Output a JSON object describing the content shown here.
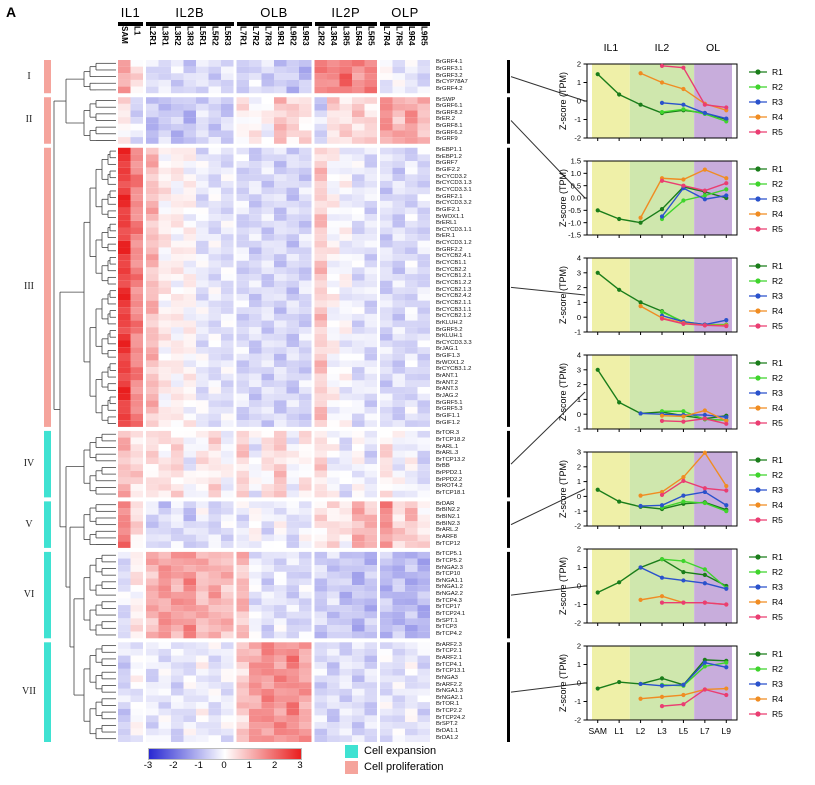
{
  "panel_label": "A",
  "header": {
    "groups": [
      {
        "label": "IL1",
        "columns": [
          "SAM",
          "L1"
        ]
      },
      {
        "label": "IL2B",
        "columns": [
          "L2R1",
          "L3R1",
          "L3R2",
          "L3R3",
          "L5R1",
          "L5R2",
          "L5R3"
        ]
      },
      {
        "label": "OLB",
        "columns": [
          "L7R1",
          "L7R2",
          "L7R3",
          "L9R1",
          "L9R2",
          "L9R3"
        ]
      },
      {
        "label": "IL2P",
        "columns": [
          "L2R2",
          "L3R4",
          "L3R5",
          "L5R4",
          "L5R5"
        ]
      },
      {
        "label": "OLP",
        "columns": [
          "L7R4",
          "L7R5",
          "L9R4",
          "L9R5"
        ]
      }
    ]
  },
  "colorbar": {
    "min": -3,
    "max": 3,
    "ticks": [
      "-3",
      "-2",
      "-1",
      "0",
      "1",
      "2",
      "3"
    ]
  },
  "category_legend": [
    {
      "label": "Cell expansion",
      "color": "#3fe2d2"
    },
    {
      "label": "Cell proliferation",
      "color": "#f5a49c"
    }
  ],
  "chart_data": {
    "heatmap": {
      "type": "heatmap",
      "value_range": [
        -3,
        3
      ],
      "columns": [
        "SAM",
        "L1",
        "L2R1",
        "L3R1",
        "L3R2",
        "L3R3",
        "L5R1",
        "L5R2",
        "L5R3",
        "L7R1",
        "L7R2",
        "L7R3",
        "L9R1",
        "L9R2",
        "L9R3",
        "L2R2",
        "L3R4",
        "L3R5",
        "L5R4",
        "L5R5",
        "L7R4",
        "L7R5",
        "L9R4",
        "L9R5"
      ],
      "row_clusters": [
        {
          "id": "I",
          "category": "Cell proliferation",
          "bar_color": "#f5a49c",
          "genes": [
            "BrGRF4.1",
            "BrGRF3.1",
            "BrGRF3.2",
            "BrCYP78A7",
            "BrGRF4.2"
          ],
          "mean_z_by_column": [
            1.3,
            0.3,
            -0.35,
            -0.55,
            -0.45,
            -0.55,
            -0.45,
            -0.5,
            -0.55,
            -0.55,
            -0.5,
            -0.6,
            -0.65,
            -0.75,
            -0.85,
            1.5,
            1.7,
            1.9,
            1.5,
            1.6,
            -0.1,
            -0.2,
            -0.35,
            -0.45
          ]
        },
        {
          "id": "II",
          "category": "Cell proliferation",
          "bar_color": "#f5a49c",
          "genes": [
            "BrSWP",
            "BrGRF6.1",
            "BrGRF8.2",
            "BrER.2",
            "BrGRF8.1",
            "BrGRF6.2",
            "BrGRF9"
          ],
          "mean_z_by_column": [
            0.3,
            -0.5,
            -0.9,
            -0.7,
            -0.8,
            -0.9,
            -0.5,
            -0.6,
            -0.7,
            0.2,
            0.1,
            0.0,
            0.9,
            0.5,
            0.4,
            -0.6,
            0.5,
            0.4,
            0.6,
            0.5,
            1.4,
            1.0,
            1.3,
            0.9
          ]
        },
        {
          "id": "III",
          "category": "Cell proliferation",
          "bar_color": "#f5a49c",
          "genes": [
            "BrEBP1.1",
            "BrEBP1.2",
            "BrGRF7",
            "BrGIF2.2",
            "BrCYCD3.2",
            "BrCYCD3.1.3",
            "BrCYCD3.3.1",
            "BrGRF2.1",
            "BrCYCD3.3.2",
            "BrGIF2.1",
            "BrWOX1.1",
            "BrERL1",
            "BrCYCD3.1.1",
            "BrER.1",
            "BrCYCD3.1.2",
            "BrGRF2.2",
            "BrCYCB2.4.1",
            "BrCYCB1.1",
            "BrCYCB2.2",
            "BrCYCB1.2.1",
            "BrCYCB1.2.2",
            "BrCYCB2.1.3",
            "BrCYCB2.4.2",
            "BrCYCB2.1.1",
            "BrCYCB3.1.1",
            "BrCYCB2.1.2",
            "BrKLUH.2",
            "BrGRF5.2",
            "BrKLUH.1",
            "BrCYCD3.3.3",
            "BrJAG.1",
            "BrGIF1.3",
            "BrWOX1.2",
            "BrCYCB3.1.2",
            "BrANT.1",
            "BrANT.2",
            "BrANT.3",
            "BrJAG.2",
            "BrGRF5.1",
            "BrGRF5.3",
            "BrGIF1.1",
            "BrGIF1.2"
          ],
          "mean_z_by_column": [
            2.6,
            1.6,
            0.9,
            0.2,
            0.15,
            0.1,
            -0.3,
            -0.35,
            -0.4,
            -0.5,
            -0.55,
            -0.5,
            -0.55,
            -0.6,
            -0.55,
            0.7,
            0.0,
            -0.1,
            -0.35,
            -0.4,
            -0.5,
            -0.55,
            -0.45,
            -0.5
          ]
        },
        {
          "id": "IV",
          "category": "Cell expansion",
          "bar_color": "#3fe2d2",
          "genes": [
            "BrTOR.3",
            "BrTCP18.2",
            "BrARL.1",
            "BrARL.3",
            "BrTCP13.2",
            "BrBB",
            "BrPPD2.1",
            "BrPPD2.2",
            "BrROT4.2",
            "BrTCP18.1"
          ],
          "mean_z_by_column": [
            0.9,
            0.5,
            0.4,
            0.3,
            0.5,
            -0.2,
            0.2,
            0.4,
            -0.1,
            0.6,
            -0.2,
            0.3,
            0.7,
            -0.1,
            0.2,
            0.5,
            -0.1,
            -0.3,
            0.0,
            -0.4,
            0.4,
            -0.2,
            -0.1,
            -0.5
          ]
        },
        {
          "id": "V",
          "category": "Cell expansion",
          "bar_color": "#3fe2d2",
          "genes": [
            "BrDAR",
            "BrBIN2.2",
            "BrBIN2.1",
            "BrBIN2.3",
            "BrARL.2",
            "BrARF8",
            "BrTCP12"
          ],
          "mean_z_by_column": [
            1.7,
            0.4,
            -0.5,
            -0.6,
            -0.3,
            -0.7,
            -0.3,
            -0.5,
            -0.4,
            -0.3,
            0.0,
            -0.35,
            -0.1,
            -0.45,
            -0.25,
            0.3,
            0.45,
            0.2,
            1.1,
            0.9,
            1.5,
            0.5,
            0.8,
            0.3
          ]
        },
        {
          "id": "VI",
          "category": "Cell expansion",
          "bar_color": "#3fe2d2",
          "genes": [
            "BrTCP5.1",
            "BrTCP5.2",
            "BrNGA2.3",
            "BrTCP10",
            "BrNGA1.1",
            "BrNGA1.2",
            "BrNGA2.2",
            "BrTCP4.3",
            "BrTCP17",
            "BrTCP24.1",
            "BrSPT.1",
            "BrTCP3",
            "BrTCP4.2"
          ],
          "mean_z_by_column": [
            -0.4,
            0.2,
            1.0,
            1.35,
            1.2,
            1.45,
            0.9,
            1.1,
            0.85,
            0.9,
            -0.25,
            -0.45,
            -0.35,
            -0.55,
            -0.45,
            -0.7,
            -0.6,
            -0.8,
            -0.9,
            -0.85,
            -0.9,
            -0.95,
            -1.0,
            -1.0
          ]
        },
        {
          "id": "VII",
          "category": "Cell expansion",
          "bar_color": "#3fe2d2",
          "genes": [
            "BrARF2.3",
            "BrTCP2.1",
            "BrARF2.1",
            "BrTCP4.1",
            "BrTCP13.1",
            "BrNGA3",
            "BrARF2.2",
            "BrNGA1.3",
            "BrNGA2.1",
            "BrTOR.1",
            "BrTCP2.2",
            "BrTCP24.2",
            "BrSPT.2",
            "BrDA1.1",
            "BrDA1.2"
          ],
          "mean_z_by_column": [
            -0.6,
            -0.1,
            -0.35,
            -0.25,
            -0.45,
            -0.3,
            -0.15,
            -0.35,
            -0.25,
            0.7,
            1.3,
            1.5,
            1.4,
            1.6,
            1.2,
            -0.5,
            -0.55,
            -0.4,
            -0.5,
            -0.55,
            -0.35,
            -0.4,
            -0.25,
            -0.4
          ]
        }
      ]
    },
    "line_plots": {
      "type": "line",
      "x_categories": [
        "SAM",
        "L1",
        "L2",
        "L3",
        "L5",
        "L7",
        "L9"
      ],
      "ylabel": "Z-score (TPM)",
      "region_bands": [
        {
          "label": "IL1",
          "color": "#eff0a8",
          "span": [
            "SAM",
            "L1"
          ]
        },
        {
          "label": "IL2",
          "color": "#cfe7ad",
          "span": [
            "L2",
            "L5"
          ]
        },
        {
          "label": "OL",
          "color": "#c8addc",
          "span": [
            "L7",
            "L9"
          ]
        }
      ],
      "legend": [
        "R1",
        "R2",
        "R3",
        "R4",
        "R5"
      ],
      "series_colors": {
        "R1": "#1a7d1a",
        "R2": "#3fd42c",
        "R3": "#2a52cc",
        "R4": "#f08c22",
        "R5": "#ea3d72"
      },
      "plots": [
        {
          "cluster": "I",
          "ylim": [
            -2,
            2
          ],
          "yticks": [
            "-2",
            "-1",
            "0",
            "1",
            "2"
          ],
          "series": {
            "R1": [
              1.45,
              0.35,
              -0.2,
              -0.65,
              -0.5,
              -0.65,
              -1.0
            ],
            "R2": [
              null,
              null,
              null,
              -0.6,
              -0.45,
              -0.7,
              -1.1
            ],
            "R3": [
              null,
              null,
              null,
              -0.1,
              -0.2,
              -0.65,
              -0.95
            ],
            "R4": [
              null,
              null,
              1.5,
              1.0,
              0.65,
              -0.15,
              -0.5
            ],
            "R5": [
              null,
              null,
              null,
              1.9,
              1.8,
              -0.2,
              -0.35
            ]
          }
        },
        {
          "cluster": "II",
          "ylim": [
            -1.5,
            1.5
          ],
          "yticks": [
            "-1.5",
            "-1.0",
            "-0.5",
            "0.0",
            "0.5",
            "1.0",
            "1.5"
          ],
          "series": {
            "R1": [
              -0.5,
              -0.85,
              -1.0,
              -0.45,
              0.45,
              0.25,
              0.0
            ],
            "R2": [
              null,
              null,
              null,
              -0.85,
              -0.1,
              0.1,
              0.35
            ],
            "R3": [
              null,
              null,
              null,
              -0.75,
              0.4,
              -0.05,
              0.1
            ],
            "R4": [
              null,
              null,
              -0.8,
              0.8,
              0.75,
              1.15,
              0.8
            ],
            "R5": [
              null,
              null,
              null,
              0.7,
              0.5,
              0.3,
              0.6
            ]
          }
        },
        {
          "cluster": "III",
          "ylim": [
            -1,
            4
          ],
          "yticks": [
            "-1",
            "0",
            "1",
            "2",
            "3",
            "4"
          ],
          "series": {
            "R1": [
              3.0,
              1.85,
              1.0,
              0.4,
              -0.35,
              -0.5,
              -0.55
            ],
            "R2": [
              null,
              null,
              null,
              0.35,
              -0.3,
              -0.5,
              -0.5
            ],
            "R3": [
              null,
              null,
              null,
              0.1,
              -0.3,
              -0.5,
              -0.2
            ],
            "R4": [
              null,
              null,
              0.75,
              -0.05,
              -0.4,
              -0.55,
              -0.55
            ],
            "R5": [
              null,
              null,
              null,
              -0.1,
              -0.45,
              -0.55,
              -0.6
            ]
          }
        },
        {
          "cluster": "IV",
          "ylim": [
            -1,
            4
          ],
          "yticks": [
            "-1",
            "0",
            "1",
            "2",
            "3",
            "4"
          ],
          "series": {
            "R1": [
              3.0,
              0.8,
              0.05,
              0.15,
              -0.1,
              -0.3,
              -0.1
            ],
            "R2": [
              null,
              null,
              null,
              0.2,
              0.2,
              -0.35,
              -0.4
            ],
            "R3": [
              null,
              null,
              0.05,
              0.0,
              -0.05,
              -0.05,
              -0.2
            ],
            "R4": [
              null,
              null,
              null,
              -0.1,
              -0.15,
              0.25,
              -0.45
            ],
            "R5": [
              null,
              null,
              null,
              -0.45,
              -0.5,
              -0.3,
              -0.65
            ]
          }
        },
        {
          "cluster": "V",
          "ylim": [
            -2,
            3
          ],
          "yticks": [
            "-2",
            "-1",
            "0",
            "1",
            "2",
            "3"
          ],
          "series": {
            "R1": [
              0.45,
              -0.35,
              -0.7,
              -0.85,
              -0.5,
              -0.4,
              -0.9
            ],
            "R2": [
              null,
              null,
              null,
              -0.75,
              -0.35,
              -0.45,
              -1.0
            ],
            "R3": [
              null,
              null,
              -0.65,
              -0.6,
              0.05,
              0.3,
              -0.6
            ],
            "R4": [
              null,
              null,
              0.05,
              0.3,
              1.3,
              2.95,
              0.7
            ],
            "R5": [
              null,
              null,
              null,
              0.1,
              1.05,
              0.55,
              0.4
            ]
          }
        },
        {
          "cluster": "VI",
          "ylim": [
            -2,
            2
          ],
          "yticks": [
            "-2",
            "-1",
            "0",
            "1",
            "2"
          ],
          "series": {
            "R1": [
              -0.35,
              0.2,
              1.0,
              1.45,
              0.75,
              0.6,
              0.0
            ],
            "R2": [
              null,
              null,
              null,
              1.45,
              1.35,
              0.9,
              -0.1
            ],
            "R3": [
              null,
              null,
              1.0,
              0.45,
              0.3,
              0.15,
              -0.15
            ],
            "R4": [
              null,
              null,
              -0.75,
              -0.55,
              -0.9,
              -0.9,
              -1.0
            ],
            "R5": [
              null,
              null,
              null,
              -0.9,
              -0.9,
              -0.9,
              -1.0
            ]
          }
        },
        {
          "cluster": "VII",
          "ylim": [
            -2,
            2
          ],
          "yticks": [
            "-2",
            "-1",
            "0",
            "1",
            "2"
          ],
          "series": {
            "R1": [
              -0.3,
              0.05,
              -0.05,
              0.25,
              -0.1,
              1.25,
              1.2
            ],
            "R2": [
              null,
              null,
              null,
              -0.1,
              -0.15,
              0.9,
              1.1
            ],
            "R3": [
              null,
              null,
              -0.05,
              -0.15,
              -0.1,
              1.1,
              0.85
            ],
            "R4": [
              null,
              null,
              -0.85,
              -0.75,
              -0.65,
              -0.35,
              -0.3
            ],
            "R5": [
              null,
              null,
              null,
              -1.25,
              -1.15,
              -0.35,
              -0.65
            ]
          }
        }
      ]
    }
  }
}
